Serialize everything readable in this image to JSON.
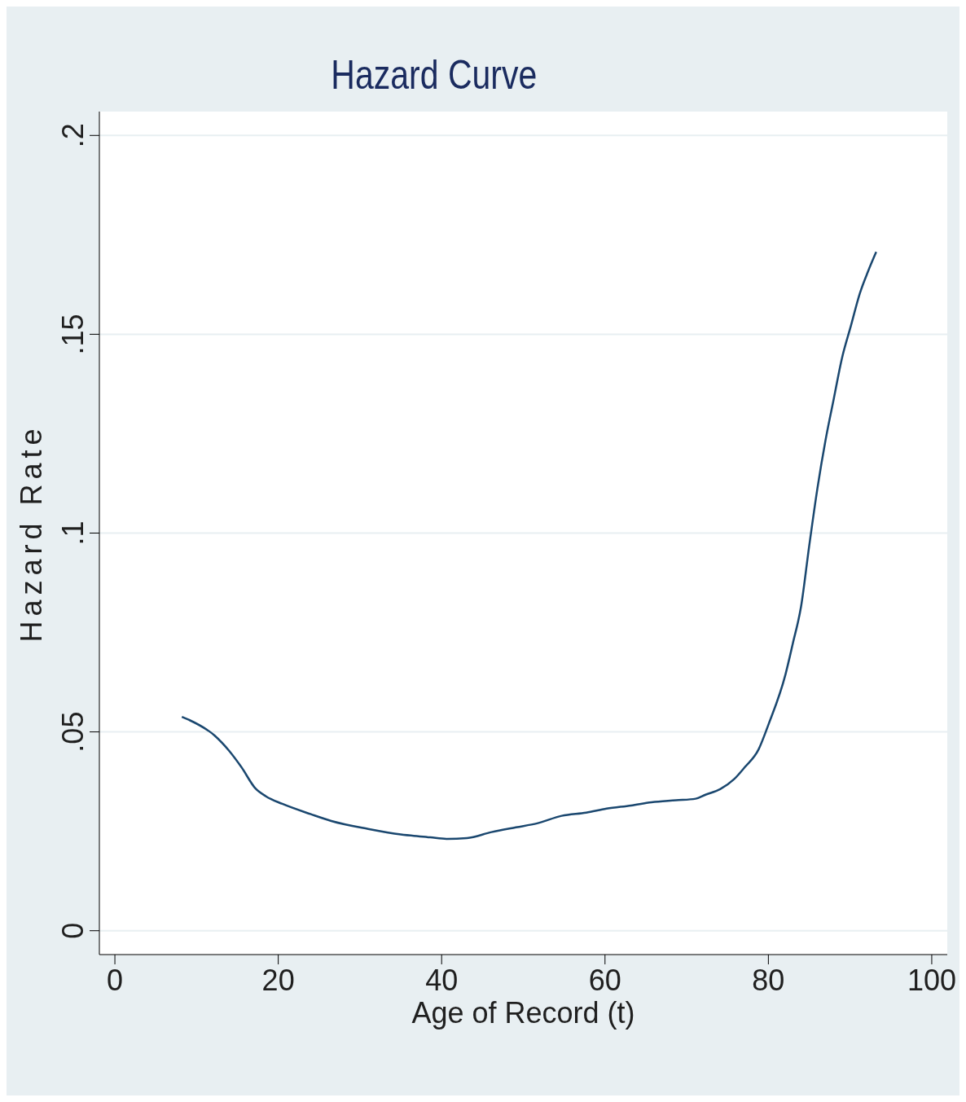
{
  "chart_data": {
    "type": "line",
    "title": "Hazard Curve",
    "xlabel": "Age of Record (t)",
    "ylabel": "Hazard Rate",
    "x": [
      8.2,
      9.1,
      12.2,
      14,
      15.5,
      17.2,
      18.5,
      20.5,
      24,
      26.5,
      31,
      35,
      38.6,
      40.6,
      43.1,
      46.1,
      49.1,
      51.7,
      54.7,
      57.7,
      60.2,
      63.2,
      65.7,
      68.7,
      71.1,
      72.3,
      74.1,
      75.8,
      77.1,
      78.8,
      80,
      82.1,
      83,
      84,
      85,
      86,
      87,
      88,
      89,
      90.1,
      91.2,
      92.2,
      93.2
    ],
    "series": [
      {
        "color": "#1a476f",
        "values": [
          0.0538,
          0.053,
          0.0491,
          0.0452,
          0.0411,
          0.0358,
          0.0338,
          0.0319,
          0.0293,
          0.0276,
          0.0256,
          0.0242,
          0.0235,
          0.0231,
          0.0233,
          0.0248,
          0.026,
          0.027,
          0.0289,
          0.0297,
          0.0307,
          0.0315,
          0.0323,
          0.0328,
          0.0332,
          0.0342,
          0.0356,
          0.0381,
          0.0411,
          0.0456,
          0.0518,
          0.0645,
          0.0723,
          0.0815,
          0.0968,
          0.1112,
          0.1234,
          0.1337,
          0.1439,
          0.1521,
          0.1603,
          0.1658,
          0.1707
        ]
      }
    ],
    "xlim": [
      -1.9,
      101.9
    ],
    "xticks": [
      0,
      20,
      40,
      60,
      80,
      100
    ],
    "ylim": [
      -0.006,
      0.206
    ],
    "yticks": [
      0,
      {
        "value": 0.05,
        "label": ".05"
      },
      {
        "value": 0.1,
        "label": ".1"
      },
      {
        "value": 0.15,
        "label": ".15"
      },
      {
        "value": 0.2,
        "label": ".2"
      }
    ],
    "grid": "y",
    "legend": false,
    "marker": "none",
    "line_style": "solid"
  }
}
